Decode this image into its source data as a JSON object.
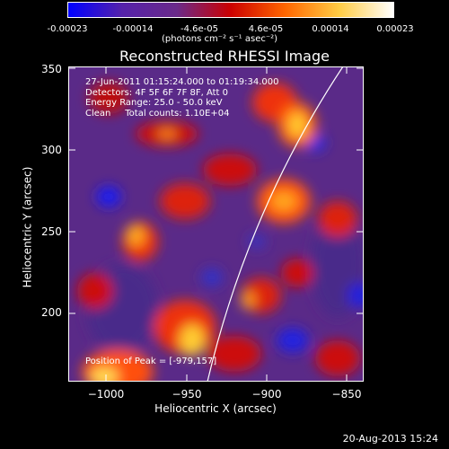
{
  "colorbar": {
    "ticks": [
      "-0.00023",
      "-0.00014",
      "-4.6e-05",
      "4.6e-05",
      "0.00014",
      "0.00023"
    ],
    "label": "(photons cm⁻² s⁻¹ asec⁻²)",
    "colors": [
      "#0000ff",
      "#5522aa",
      "#6a2a8a",
      "#cc0000",
      "#ff6600",
      "#ffcc44",
      "#ffffff"
    ]
  },
  "plot": {
    "title": "Reconstructed RHESSI Image",
    "annotation": "27-Jun-2011 01:15:24.000 to 01:19:34.000\nDetectors: 4F 5F 6F 7F 8F, Att 0\nEnergy Range: 25.0 - 50.0 keV\nClean     Total counts: 1.10E+04",
    "peak_text": "Position of Peak = [-979,157]",
    "xlabel": "Heliocentric X (arcsec)",
    "ylabel": "Heliocentric Y (arcsec)",
    "yticks": [
      "350",
      "300",
      "250",
      "200"
    ],
    "xticks": [
      "−1000",
      "−950",
      "−900",
      "−850"
    ]
  },
  "footer": {
    "date": "20-Aug-2013 15:24"
  }
}
